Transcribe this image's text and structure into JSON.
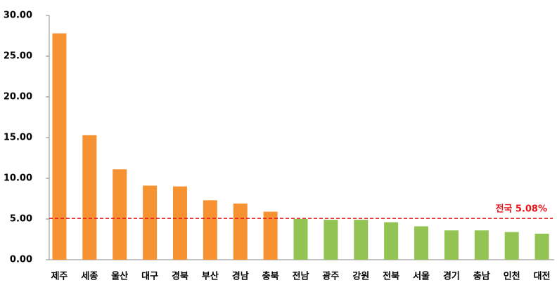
{
  "chart_data": {
    "type": "bar",
    "categories": [
      "제주",
      "세종",
      "울산",
      "대구",
      "경북",
      "부산",
      "경남",
      "충북",
      "전남",
      "광주",
      "강원",
      "전북",
      "서울",
      "경기",
      "충남",
      "인천",
      "대전"
    ],
    "values": [
      27.8,
      15.3,
      11.1,
      9.1,
      9.0,
      7.3,
      6.9,
      5.9,
      5.0,
      4.9,
      4.9,
      4.6,
      4.1,
      3.6,
      3.6,
      3.4,
      3.2
    ],
    "colors": [
      "#f79232",
      "#f79232",
      "#f79232",
      "#f79232",
      "#f79232",
      "#f79232",
      "#f79232",
      "#f79232",
      "#92c353",
      "#92c353",
      "#92c353",
      "#92c353",
      "#92c353",
      "#92c353",
      "#92c353",
      "#92c353",
      "#92c353"
    ],
    "ylim": [
      0,
      30
    ],
    "yticks": [
      {
        "value": 0,
        "label": "0.00"
      },
      {
        "value": 5,
        "label": "5.00"
      },
      {
        "value": 10,
        "label": "10.00"
      },
      {
        "value": 15,
        "label": "15.00"
      },
      {
        "value": 20,
        "label": "20.00"
      },
      {
        "value": 25,
        "label": "25.00"
      },
      {
        "value": 30,
        "label": "30.00"
      }
    ],
    "grid": false,
    "reference_line": {
      "value": 5.08,
      "label": "전국 5.08%",
      "color": "#e8141c"
    }
  }
}
